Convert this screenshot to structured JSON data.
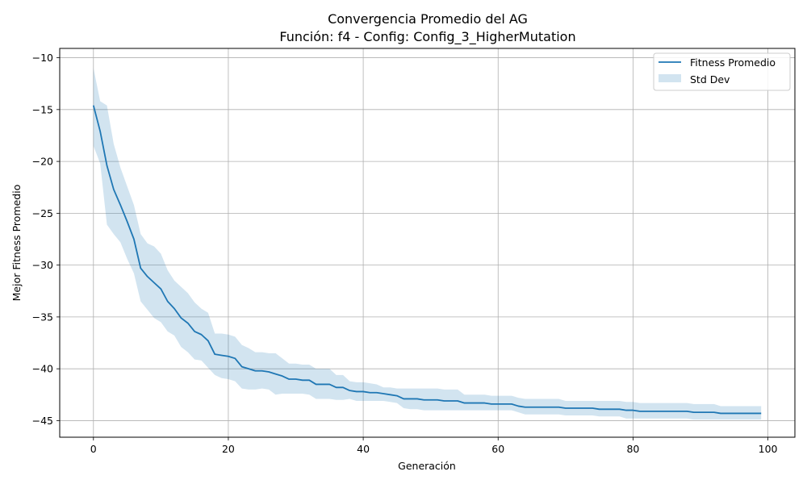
{
  "chart_data": {
    "type": "line",
    "title": "Convergencia Promedio del AG",
    "subtitle": "Función: f4 - Config: Config_3_HigherMutation",
    "xlabel": "Generación",
    "ylabel": "Mejor Fitness Promedio",
    "xlim": [
      -5,
      104
    ],
    "ylim": [
      -46.6,
      -9.1
    ],
    "xticks": [
      0,
      20,
      40,
      60,
      80,
      100
    ],
    "xtick_labels": [
      "0",
      "20",
      "40",
      "60",
      "80",
      "100"
    ],
    "yticks": [
      -10,
      -15,
      -20,
      -25,
      -30,
      -35,
      -40,
      -45
    ],
    "ytick_labels": [
      "−10",
      "−15",
      "−20",
      "−25",
      "−30",
      "−35",
      "−40",
      "−45"
    ],
    "grid": true,
    "legend_position": "top-right",
    "colors": {
      "line": "#1f77b4",
      "band": "#1f77b4"
    },
    "legend": [
      "Fitness Promedio",
      "Std Dev"
    ],
    "series": [
      {
        "name": "Fitness Promedio",
        "x": [
          0,
          1,
          2,
          3,
          4,
          5,
          6,
          7,
          8,
          9,
          10,
          11,
          12,
          13,
          14,
          15,
          16,
          17,
          18,
          19,
          20,
          21,
          22,
          23,
          24,
          25,
          26,
          27,
          28,
          29,
          30,
          31,
          32,
          33,
          34,
          35,
          36,
          37,
          38,
          39,
          40,
          41,
          42,
          43,
          44,
          45,
          46,
          47,
          48,
          49,
          50,
          51,
          52,
          53,
          54,
          55,
          56,
          57,
          58,
          59,
          60,
          61,
          62,
          63,
          64,
          65,
          66,
          67,
          68,
          69,
          70,
          71,
          72,
          73,
          74,
          75,
          76,
          77,
          78,
          79,
          80,
          81,
          82,
          83,
          84,
          85,
          86,
          87,
          88,
          89,
          90,
          91,
          92,
          93,
          94,
          95,
          96,
          97,
          98,
          99
        ],
        "y": [
          -14.6,
          -17.1,
          -20.4,
          -22.7,
          -24.2,
          -25.8,
          -27.5,
          -30.3,
          -31.1,
          -31.7,
          -32.3,
          -33.5,
          -34.2,
          -35.1,
          -35.6,
          -36.4,
          -36.7,
          -37.3,
          -38.6,
          -38.7,
          -38.8,
          -39.0,
          -39.8,
          -40.0,
          -40.2,
          -40.2,
          -40.3,
          -40.5,
          -40.7,
          -41.0,
          -41.0,
          -41.1,
          -41.1,
          -41.5,
          -41.5,
          -41.5,
          -41.8,
          -41.8,
          -42.1,
          -42.2,
          -42.2,
          -42.3,
          -42.3,
          -42.4,
          -42.5,
          -42.6,
          -42.9,
          -42.9,
          -42.9,
          -43.0,
          -43.0,
          -43.0,
          -43.1,
          -43.1,
          -43.1,
          -43.3,
          -43.3,
          -43.3,
          -43.3,
          -43.4,
          -43.4,
          -43.4,
          -43.4,
          -43.6,
          -43.7,
          -43.7,
          -43.7,
          -43.7,
          -43.7,
          -43.7,
          -43.8,
          -43.8,
          -43.8,
          -43.8,
          -43.8,
          -43.9,
          -43.9,
          -43.9,
          -43.9,
          -44.0,
          -44.0,
          -44.1,
          -44.1,
          -44.1,
          -44.1,
          -44.1,
          -44.1,
          -44.1,
          -44.1,
          -44.2,
          -44.2,
          -44.2,
          -44.2,
          -44.3,
          -44.3,
          -44.3,
          -44.3,
          -44.3,
          -44.3,
          -44.3
        ]
      },
      {
        "name": "Std Dev",
        "x": [
          0,
          1,
          2,
          3,
          4,
          5,
          6,
          7,
          8,
          9,
          10,
          11,
          12,
          13,
          14,
          15,
          16,
          17,
          18,
          19,
          20,
          21,
          22,
          23,
          24,
          25,
          26,
          27,
          28,
          29,
          30,
          31,
          32,
          33,
          34,
          35,
          36,
          37,
          38,
          39,
          40,
          41,
          42,
          43,
          44,
          45,
          46,
          47,
          48,
          49,
          50,
          51,
          52,
          53,
          54,
          55,
          56,
          57,
          58,
          59,
          60,
          61,
          62,
          63,
          64,
          65,
          66,
          67,
          68,
          69,
          70,
          71,
          72,
          73,
          74,
          75,
          76,
          77,
          78,
          79,
          80,
          81,
          82,
          83,
          84,
          85,
          86,
          87,
          88,
          89,
          90,
          91,
          92,
          93,
          94,
          95,
          96,
          97,
          98,
          99
        ],
        "upper": [
          -11.0,
          -14.2,
          -14.6,
          -18.3,
          -20.6,
          -22.4,
          -24.2,
          -27.0,
          -27.9,
          -28.2,
          -28.9,
          -30.5,
          -31.5,
          -32.1,
          -32.7,
          -33.6,
          -34.2,
          -34.6,
          -36.6,
          -36.6,
          -36.7,
          -36.9,
          -37.7,
          -38.0,
          -38.4,
          -38.4,
          -38.5,
          -38.5,
          -39.0,
          -39.5,
          -39.5,
          -39.6,
          -39.6,
          -40.0,
          -40.0,
          -40.0,
          -40.6,
          -40.6,
          -41.2,
          -41.3,
          -41.3,
          -41.4,
          -41.5,
          -41.8,
          -41.8,
          -41.9,
          -41.9,
          -41.9,
          -41.9,
          -41.9,
          -41.9,
          -41.9,
          -42.0,
          -42.0,
          -42.0,
          -42.5,
          -42.5,
          -42.5,
          -42.5,
          -42.6,
          -42.6,
          -42.6,
          -42.6,
          -42.8,
          -42.9,
          -42.9,
          -42.9,
          -42.9,
          -42.9,
          -42.9,
          -43.1,
          -43.1,
          -43.1,
          -43.1,
          -43.1,
          -43.1,
          -43.1,
          -43.1,
          -43.1,
          -43.2,
          -43.2,
          -43.3,
          -43.3,
          -43.3,
          -43.3,
          -43.3,
          -43.3,
          -43.3,
          -43.3,
          -43.4,
          -43.4,
          -43.4,
          -43.4,
          -43.6,
          -43.6,
          -43.6,
          -43.6,
          -43.6,
          -43.6,
          -43.6
        ],
        "lower": [
          -18.5,
          -20.2,
          -26.1,
          -27.0,
          -27.8,
          -29.4,
          -30.8,
          -33.5,
          -34.3,
          -35.1,
          -35.5,
          -36.4,
          -36.8,
          -37.9,
          -38.4,
          -39.1,
          -39.2,
          -39.9,
          -40.6,
          -40.9,
          -41.0,
          -41.2,
          -41.9,
          -42.0,
          -42.0,
          -41.9,
          -42.0,
          -42.5,
          -42.4,
          -42.4,
          -42.4,
          -42.4,
          -42.5,
          -42.9,
          -42.9,
          -42.9,
          -43.0,
          -43.0,
          -42.9,
          -43.1,
          -43.1,
          -43.1,
          -43.1,
          -43.1,
          -43.2,
          -43.3,
          -43.8,
          -43.9,
          -43.9,
          -44.0,
          -44.0,
          -44.0,
          -44.0,
          -44.0,
          -44.0,
          -44.0,
          -44.0,
          -44.0,
          -44.0,
          -44.0,
          -44.0,
          -44.0,
          -44.0,
          -44.2,
          -44.4,
          -44.4,
          -44.4,
          -44.4,
          -44.4,
          -44.4,
          -44.5,
          -44.5,
          -44.5,
          -44.5,
          -44.5,
          -44.6,
          -44.6,
          -44.6,
          -44.6,
          -44.8,
          -44.8,
          -44.8,
          -44.8,
          -44.8,
          -44.8,
          -44.8,
          -44.8,
          -44.8,
          -44.8,
          -44.9,
          -44.9,
          -44.9,
          -44.9,
          -44.9,
          -44.9,
          -44.9,
          -44.9,
          -44.9,
          -44.9,
          -44.9
        ]
      }
    ]
  }
}
